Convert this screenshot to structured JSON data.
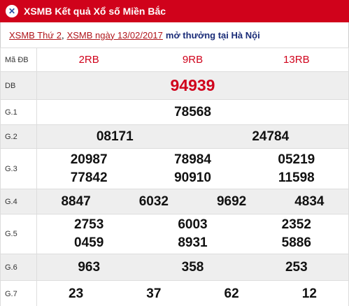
{
  "header": {
    "title": "XSMB Kết quả Xổ số Miền Bắc"
  },
  "subtitle": {
    "link1": "XSMB Thứ 2",
    "separator": ",",
    "link2": "XSMB ngày 13/02/2017",
    "text": "mở thưởng tại Hà Nội"
  },
  "table": {
    "header_label": "Mã ĐB",
    "codes": [
      "2RB",
      "9RB",
      "13RB"
    ],
    "rows": [
      {
        "label": "DB",
        "numbers": [
          "94939"
        ]
      },
      {
        "label": "G.1",
        "numbers": [
          "78568"
        ]
      },
      {
        "label": "G.2",
        "numbers": [
          "08171",
          "24784"
        ]
      },
      {
        "label": "G.3",
        "numbers": [
          "20987",
          "78984",
          "05219",
          "77842",
          "90910",
          "11598"
        ]
      },
      {
        "label": "G.4",
        "numbers": [
          "8847",
          "6032",
          "9692",
          "4834"
        ]
      },
      {
        "label": "G.5",
        "numbers": [
          "2753",
          "6003",
          "2352",
          "0459",
          "8931",
          "5886"
        ]
      },
      {
        "label": "G.6",
        "numbers": [
          "963",
          "358",
          "253"
        ]
      },
      {
        "label": "G.7",
        "numbers": [
          "23",
          "37",
          "62",
          "12"
        ]
      }
    ]
  }
}
